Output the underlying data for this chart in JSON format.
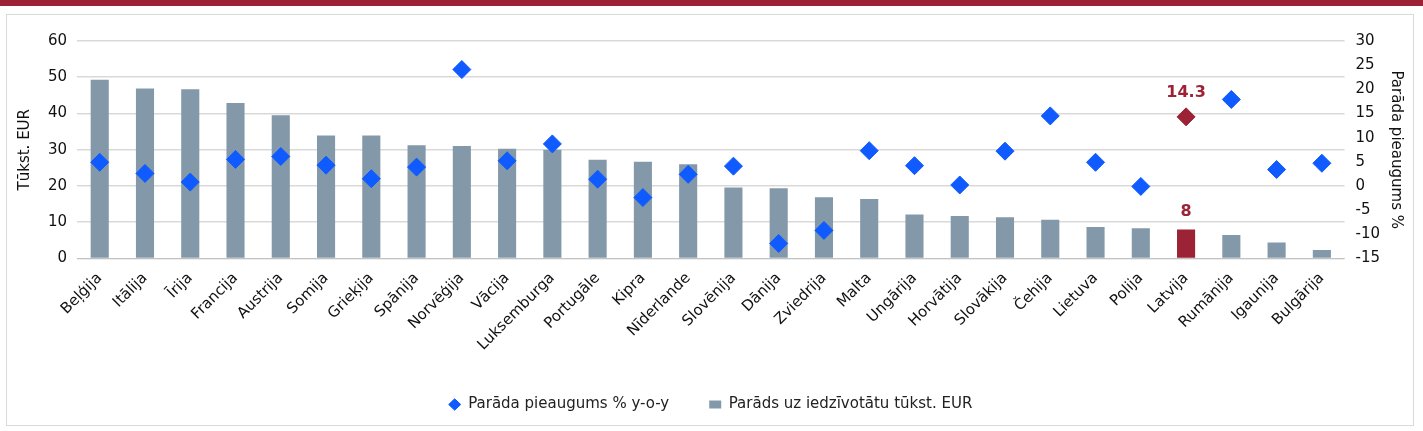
{
  "chart_data": {
    "type": "bar",
    "ylabel": "Tūkst. EUR",
    "y2label": "Parāda pieaugums %",
    "categories": [
      "Beļģija",
      "Itālija",
      "Īrija",
      "Francija",
      "Austrija",
      "Somija",
      "Grieķija",
      "Spānija",
      "Norvēģija",
      "Vācija",
      "Luksemburga",
      "Portugāle",
      "Kipra",
      "Nīderlande",
      "Slovēnija",
      "Dānija",
      "Zviedrija",
      "Malta",
      "Ungārija",
      "Horvātija",
      "Slovākija",
      "Čehija",
      "Lietuva",
      "Polija",
      "Latvija",
      "Rumānija",
      "Igaunija",
      "Bulgārija"
    ],
    "series": [
      {
        "name": "Parāds uz iedzīvotātu tūkst. EUR",
        "color": "#8399aa",
        "colors": [
          "#8399aa",
          "#8399aa",
          "#8399aa",
          "#8399aa",
          "#8399aa",
          "#8399aa",
          "#8399aa",
          "#8399aa",
          "#8399aa",
          "#8399aa",
          "#8399aa",
          "#8399aa",
          "#8399aa",
          "#8399aa",
          "#8399aa",
          "#8399aa",
          "#8399aa",
          "#8399aa",
          "#8399aa",
          "#8399aa",
          "#8399aa",
          "#8399aa",
          "#8399aa",
          "#8399aa",
          "#9b2335",
          "#8399aa",
          "#8399aa",
          "#8399aa"
        ],
        "values": [
          49.3,
          46.9,
          46.7,
          42.9,
          39.5,
          33.9,
          33.9,
          31.2,
          31.0,
          30.3,
          30.0,
          27.2,
          26.7,
          26.0,
          19.6,
          19.4,
          16.9,
          16.4,
          12.1,
          11.7,
          11.4,
          10.7,
          8.7,
          8.3,
          8,
          6.5,
          4.4,
          2.3
        ],
        "value_labels": [
          null,
          null,
          null,
          null,
          null,
          null,
          null,
          null,
          null,
          null,
          null,
          null,
          null,
          null,
          null,
          null,
          null,
          null,
          null,
          null,
          null,
          null,
          null,
          null,
          "8",
          null,
          null,
          null
        ]
      },
      {
        "name": "Parāda pieaugums % y-o-y",
        "type": "scatter",
        "axis": "y2",
        "marker": "diamond",
        "color": "#0f5bff",
        "colors": [
          "#0f5bff",
          "#0f5bff",
          "#0f5bff",
          "#0f5bff",
          "#0f5bff",
          "#0f5bff",
          "#0f5bff",
          "#0f5bff",
          "#0f5bff",
          "#0f5bff",
          "#0f5bff",
          "#0f5bff",
          "#0f5bff",
          "#0f5bff",
          "#0f5bff",
          "#0f5bff",
          "#0f5bff",
          "#0f5bff",
          "#0f5bff",
          "#0f5bff",
          "#0f5bff",
          "#0f5bff",
          "#0f5bff",
          "#0f5bff",
          "#9b2335",
          "#0f5bff",
          "#0f5bff",
          "#0f5bff"
        ],
        "values": [
          4.9,
          2.6,
          0.8,
          5.5,
          6.1,
          4.3,
          1.5,
          3.9,
          24.1,
          5.2,
          8.7,
          1.4,
          -2.4,
          2.4,
          4.1,
          -11.9,
          -9.2,
          7.3,
          4.2,
          0.2,
          7.2,
          14.5,
          4.9,
          -0.1,
          14.3,
          17.9,
          3.4,
          4.7
        ],
        "value_labels": [
          null,
          null,
          null,
          null,
          null,
          null,
          null,
          null,
          null,
          null,
          null,
          null,
          null,
          null,
          null,
          null,
          null,
          null,
          null,
          null,
          null,
          null,
          null,
          null,
          "14.3",
          null,
          null,
          null
        ]
      }
    ],
    "ylim": [
      0,
      60
    ],
    "yticks": [
      0,
      10,
      20,
      30,
      40,
      50,
      60
    ],
    "y2lim": [
      -15,
      30
    ],
    "y2ticks": [
      -15,
      -10,
      -5,
      0,
      5,
      10,
      15,
      20,
      25,
      30
    ],
    "grid": "y",
    "legend": "bottom"
  }
}
